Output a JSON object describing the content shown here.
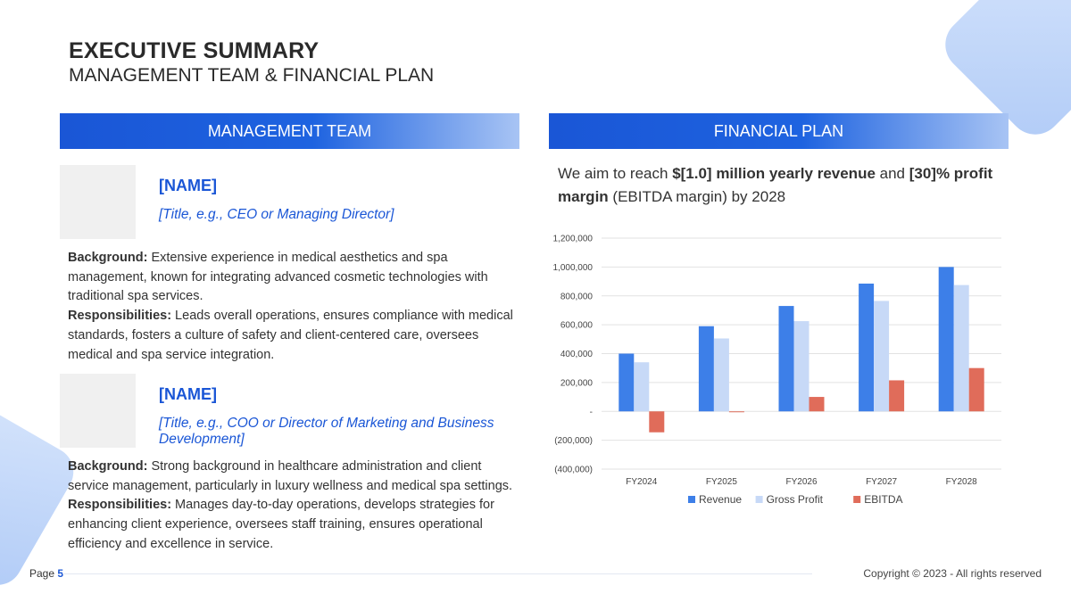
{
  "header": {
    "title": "EXECUTIVE SUMMARY",
    "subtitle": "MANAGEMENT TEAM & FINANCIAL PLAN"
  },
  "management": {
    "heading": "MANAGEMENT TEAM",
    "members": [
      {
        "name": "[NAME]",
        "title": "[Title, e.g., CEO or Managing Director]",
        "background_label": "Background:",
        "background": " Extensive experience in medical aesthetics and spa management, known for integrating advanced cosmetic technologies with traditional spa services.",
        "responsibilities_label": "Responsibilities:",
        "responsibilities": " Leads overall operations, ensures compliance with medical standards, fosters a culture of safety and client-centered care, oversees medical and spa service integration."
      },
      {
        "name": "[NAME]",
        "title": "[Title, e.g., COO or Director of Marketing and Business Development]",
        "background_label": "Background:",
        "background": " Strong background in healthcare administration and client service management, particularly in luxury wellness and medical spa settings.",
        "responsibilities_label": "Responsibilities:",
        "responsibilities": " Manages day-to-day operations, develops strategies for enhancing client experience, oversees staff training, ensures operational efficiency and excellence in service."
      }
    ]
  },
  "financial": {
    "heading": "FINANCIAL PLAN",
    "text_1": "We aim to reach ",
    "text_bold_1": "$[1.0] million yearly revenue",
    "text_2": " and ",
    "text_bold_2": "[30]% profit margin",
    "text_3": " (EBITDA margin) by 2028"
  },
  "chart_data": {
    "type": "bar",
    "categories": [
      "FY2024",
      "FY2025",
      "FY2026",
      "FY2027",
      "FY2028"
    ],
    "series": [
      {
        "name": "Revenue",
        "color": "#3d7fe8",
        "values": [
          400000,
          590000,
          730000,
          885000,
          1000000
        ]
      },
      {
        "name": "Gross Profit",
        "color": "#c7d9f7",
        "values": [
          340000,
          505000,
          625000,
          765000,
          875000
        ]
      },
      {
        "name": "EBITDA",
        "color": "#e06c5a",
        "values": [
          -145000,
          -5000,
          100000,
          215000,
          300000
        ]
      }
    ],
    "ylim": [
      -400000,
      1200000
    ],
    "yticks": [
      1200000,
      1000000,
      800000,
      600000,
      400000,
      200000,
      0,
      -200000,
      -400000
    ],
    "ytick_labels": [
      "1,200,000",
      "1,000,000",
      "800,000",
      "600,000",
      "400,000",
      "200,000",
      "-",
      "(200,000)",
      "(400,000)"
    ],
    "grid": true,
    "legend": "bottom"
  },
  "footer": {
    "page_label": "Page",
    "page_number": "5",
    "copyright": "Copyright © 2023 - All rights reserved"
  }
}
